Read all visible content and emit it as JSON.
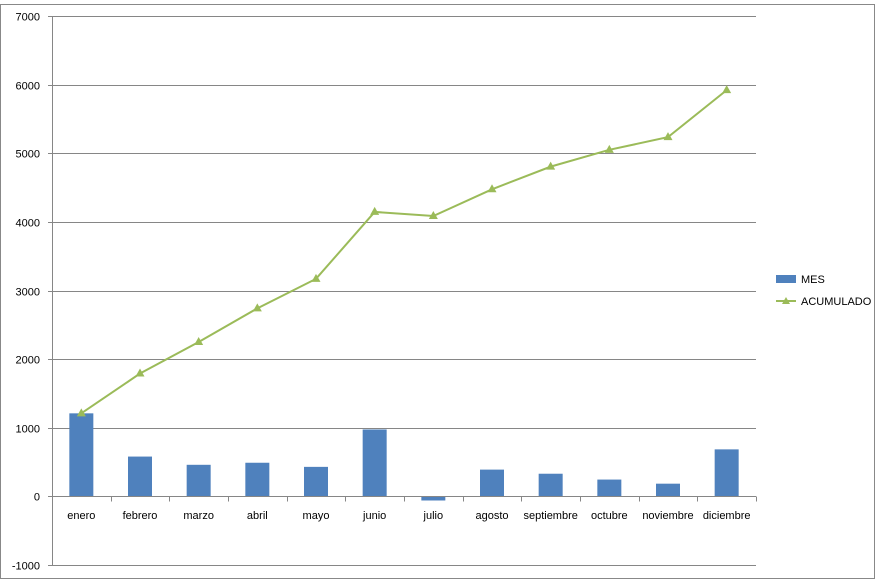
{
  "chart_data": {
    "type": "bar+line",
    "categories": [
      "enero",
      "febrero",
      "marzo",
      "abril",
      "mayo",
      "junio",
      "julio",
      "agosto",
      "septiembre",
      "octubre",
      "noviembre",
      "diciembre"
    ],
    "series": [
      {
        "name": "MES",
        "type": "bar",
        "color": "#4f81bd",
        "values": [
          1210,
          580,
          460,
          490,
          430,
          975,
          -60,
          390,
          330,
          245,
          185,
          685
        ]
      },
      {
        "name": "ACUMULADO",
        "type": "line",
        "color": "#9bbb59",
        "values": [
          1210,
          1790,
          2250,
          2740,
          3170,
          4145,
          4085,
          4475,
          4805,
          5050,
          5235,
          5920
        ]
      }
    ],
    "ylim": [
      -1000,
      7000
    ],
    "yticks": [
      "-1000",
      "0",
      "1000",
      "2000",
      "3000",
      "4000",
      "5000",
      "6000",
      "7000"
    ],
    "grid": true,
    "legend": "right"
  }
}
